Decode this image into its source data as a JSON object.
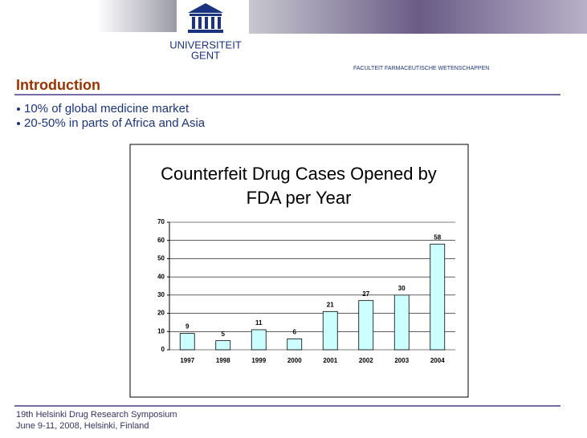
{
  "header": {
    "university": [
      "UNIVERSITEIT",
      "GENT"
    ],
    "faculty": "FACULTEIT FARMACEUTISCHE WETENSCHAPPEN"
  },
  "slide_title": "Introduction",
  "bullets": [
    "10% of global medicine market",
    "20-50%  in parts of Africa and Asia"
  ],
  "chart_data": {
    "type": "bar",
    "title": [
      "Counterfeit Drug Cases Opened by",
      "FDA  per Year"
    ],
    "categories": [
      "1997",
      "1998",
      "1999",
      "2000",
      "2001",
      "2002",
      "2003",
      "2004"
    ],
    "values": [
      9,
      5,
      11,
      6,
      21,
      27,
      30,
      58
    ],
    "color": "#ccffff",
    "ylim": [
      0,
      70
    ],
    "yticks": [
      0,
      10,
      20,
      30,
      40,
      50,
      60,
      70
    ],
    "grid": true
  },
  "footer": [
    "19th Helsinki Drug Research  Symposium",
    "June 9-11, 2008, Helsinki, Finland"
  ]
}
